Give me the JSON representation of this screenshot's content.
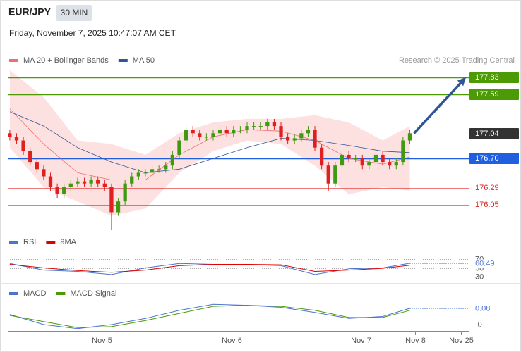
{
  "header": {
    "symbol": "EUR/JPY",
    "interval": "30 MIN",
    "datetime": "Friday, November 7, 2025 10:47:07 AM CET",
    "credit": "Research © 2025 Trading Central"
  },
  "chart_data": [
    {
      "type": "candlestick",
      "xlim": [
        -0.3,
        67.8
      ],
      "ylim": [
        175.69,
        178.22
      ],
      "up_color": "#3f9a12",
      "down_color": "#e02020",
      "open": [
        177.05,
        177.0,
        176.95,
        176.8,
        176.65,
        176.55,
        176.45,
        176.3,
        176.2,
        176.3,
        176.35,
        176.38,
        176.35,
        176.4,
        176.35,
        176.3,
        175.95,
        176.1,
        176.35,
        176.45,
        176.5,
        176.5,
        176.55,
        176.55,
        176.6,
        176.75,
        176.95,
        177.1,
        177.05,
        177.0,
        177.0,
        177.05,
        177.1,
        177.05,
        177.1,
        177.1,
        177.15,
        177.15,
        177.15,
        177.2,
        177.15,
        177.0,
        176.95,
        176.98,
        177.05,
        177.1,
        176.85,
        176.6,
        176.35,
        176.6,
        176.75,
        176.7,
        176.7,
        176.6,
        176.65,
        176.75,
        176.65,
        176.6,
        176.65,
        176.95
      ],
      "high": [
        177.1,
        177.05,
        177.0,
        176.85,
        176.7,
        176.6,
        176.5,
        176.35,
        176.35,
        176.4,
        176.43,
        176.43,
        176.45,
        176.45,
        176.4,
        176.35,
        176.15,
        176.4,
        176.5,
        176.55,
        176.55,
        176.6,
        176.6,
        176.65,
        176.8,
        177.0,
        177.15,
        177.15,
        177.1,
        177.05,
        177.1,
        177.15,
        177.15,
        177.15,
        177.15,
        177.2,
        177.2,
        177.2,
        177.25,
        177.25,
        177.2,
        177.05,
        177.03,
        177.1,
        177.15,
        177.15,
        176.9,
        176.65,
        176.65,
        176.8,
        176.8,
        176.75,
        176.75,
        176.7,
        176.8,
        176.8,
        176.7,
        176.7,
        177.0,
        177.1
      ],
      "low": [
        176.95,
        176.9,
        176.75,
        176.6,
        176.5,
        176.4,
        176.25,
        176.15,
        176.15,
        176.25,
        176.3,
        176.3,
        176.3,
        176.3,
        176.25,
        175.7,
        175.9,
        176.05,
        176.3,
        176.4,
        176.45,
        176.45,
        176.5,
        176.5,
        176.55,
        176.7,
        176.9,
        177.0,
        176.95,
        176.95,
        176.95,
        177.0,
        177.0,
        177.0,
        177.05,
        177.05,
        177.1,
        177.1,
        177.1,
        177.1,
        176.95,
        176.9,
        176.9,
        176.93,
        177.0,
        176.8,
        176.55,
        176.25,
        176.3,
        176.55,
        176.65,
        176.65,
        176.55,
        176.55,
        176.6,
        176.6,
        176.55,
        176.55,
        176.6,
        176.9
      ],
      "close": [
        177.0,
        176.95,
        176.8,
        176.65,
        176.55,
        176.45,
        176.3,
        176.2,
        176.3,
        176.35,
        176.38,
        176.35,
        176.4,
        176.35,
        176.3,
        175.95,
        176.1,
        176.35,
        176.45,
        176.5,
        176.5,
        176.55,
        176.55,
        176.6,
        176.75,
        176.95,
        177.1,
        177.05,
        177.0,
        177.0,
        177.05,
        177.1,
        177.05,
        177.1,
        177.1,
        177.15,
        177.15,
        177.15,
        177.2,
        177.15,
        177.0,
        176.95,
        176.98,
        177.05,
        177.1,
        176.85,
        176.6,
        176.35,
        176.6,
        176.75,
        176.7,
        176.7,
        176.6,
        176.65,
        176.75,
        176.65,
        176.6,
        176.65,
        176.95,
        177.05
      ],
      "series": [
        {
          "name": "MA 20 + Bollinger Bands",
          "color": "#f26d6d",
          "band_color": "#fde0e0",
          "x": [
            0,
            5,
            10,
            15,
            20,
            25,
            30,
            35,
            40,
            45,
            50,
            55,
            59
          ],
          "values": [
            177.39,
            176.9,
            176.5,
            176.4,
            176.4,
            176.75,
            177.0,
            177.1,
            177.08,
            176.95,
            176.7,
            176.62,
            176.72
          ],
          "upper": [
            177.93,
            177.55,
            176.95,
            176.9,
            176.75,
            177.05,
            177.2,
            177.25,
            177.25,
            177.3,
            177.2,
            176.95,
            177.15
          ],
          "lower": [
            176.85,
            176.3,
            176.1,
            175.9,
            176.0,
            176.5,
            176.8,
            176.95,
            176.9,
            176.6,
            176.2,
            176.3,
            176.25
          ]
        },
        {
          "name": "MA 50",
          "color": "#2f5597",
          "x": [
            0,
            5,
            10,
            15,
            20,
            25,
            30,
            35,
            40,
            45,
            50,
            55,
            59
          ],
          "values": [
            177.35,
            177.15,
            176.85,
            176.65,
            176.5,
            176.55,
            176.7,
            176.85,
            176.98,
            176.95,
            176.88,
            176.8,
            176.78
          ]
        }
      ],
      "levels": [
        {
          "value": 177.83,
          "label": "177.83",
          "color": "#4c9a06",
          "kind": "box"
        },
        {
          "value": 177.59,
          "label": "177.59",
          "color": "#4c9a06",
          "kind": "box"
        },
        {
          "value": 177.04,
          "label": "177.04",
          "color": "#333333",
          "kind": "last"
        },
        {
          "value": 176.7,
          "label": "176.70",
          "color": "#1f5fe0",
          "kind": "box"
        },
        {
          "value": 176.29,
          "label": "176.29",
          "color": "#e02020",
          "kind": "text"
        },
        {
          "value": 176.05,
          "label": "176.05",
          "color": "#e02020",
          "kind": "text"
        }
      ]
    },
    {
      "type": "line",
      "xlim": [
        -0.3,
        67.8
      ],
      "ylim": [
        18.8,
        122.8
      ],
      "yticks": [
        70,
        50,
        30
      ],
      "series": [
        {
          "name": "RSI",
          "color": "#4a74d0",
          "x": [
            0,
            5,
            10,
            15,
            20,
            25,
            30,
            35,
            40,
            45,
            50,
            55,
            59
          ],
          "values": [
            60,
            45,
            42,
            35,
            50,
            60,
            58,
            58,
            55,
            35,
            48,
            50,
            60.49
          ]
        },
        {
          "name": "9MA",
          "color": "#e00000",
          "x": [
            0,
            5,
            10,
            15,
            20,
            25,
            30,
            35,
            40,
            45,
            50,
            55,
            59
          ],
          "values": [
            58,
            50,
            44,
            40,
            45,
            55,
            58,
            58,
            57,
            42,
            45,
            49,
            56
          ]
        }
      ]
    },
    {
      "type": "line",
      "xlim": [
        -0.3,
        67.8
      ],
      "ylim": [
        -0.0313,
        0.177
      ],
      "yticks": [
        {
          "value": 0,
          "label": "-0"
        }
      ],
      "xticks": [
        {
          "value": 13.5,
          "label": "Nov 5"
        },
        {
          "value": 32.7,
          "label": "Nov 6"
        },
        {
          "value": 51.8,
          "label": "Nov 7"
        },
        {
          "value": 59.8,
          "label": "Nov 8"
        },
        {
          "value": 66.6,
          "label": "Nov 25"
        }
      ],
      "series": [
        {
          "name": "MACD",
          "color": "#4a74d0",
          "x": [
            0,
            5,
            10,
            15,
            20,
            25,
            30,
            35,
            40,
            45,
            50,
            55,
            59
          ],
          "values": [
            0.05,
            0.0,
            -0.02,
            0.0,
            0.03,
            0.07,
            0.1,
            0.095,
            0.085,
            0.06,
            0.03,
            0.04,
            0.08
          ]
        },
        {
          "name": "MACD Signal",
          "color": "#4c9a06",
          "x": [
            0,
            5,
            10,
            15,
            20,
            25,
            30,
            35,
            40,
            45,
            50,
            55,
            59
          ],
          "values": [
            0.045,
            0.015,
            -0.015,
            -0.01,
            0.02,
            0.055,
            0.09,
            0.095,
            0.09,
            0.07,
            0.035,
            0.035,
            0.07
          ]
        }
      ]
    }
  ]
}
